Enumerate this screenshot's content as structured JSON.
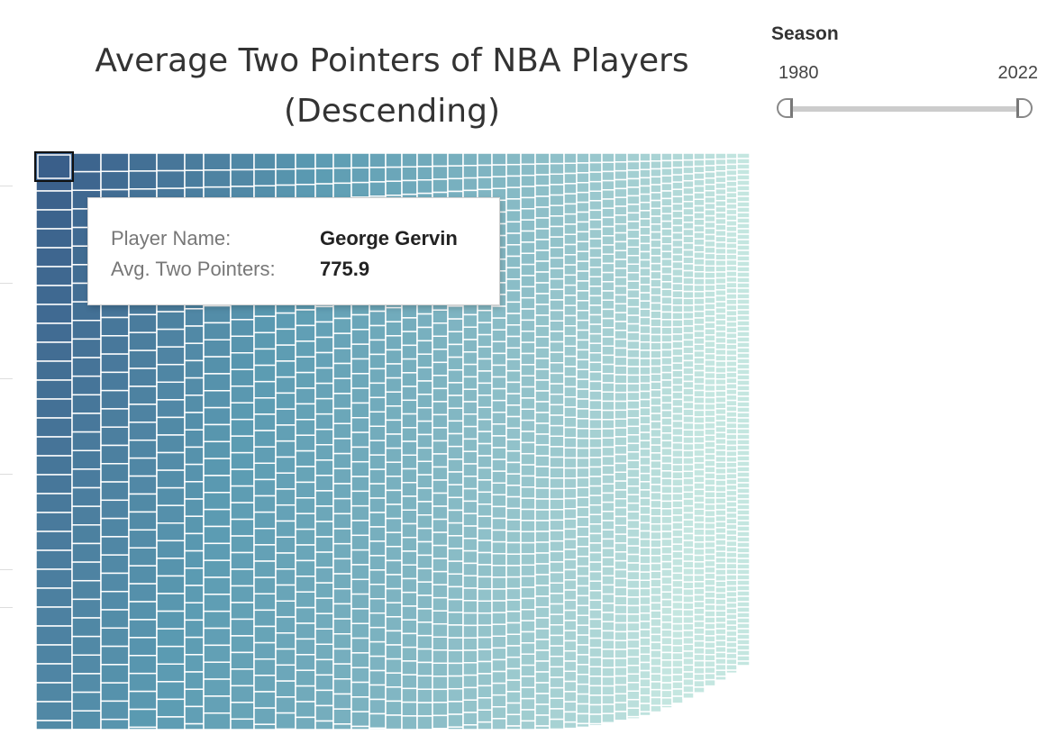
{
  "title_line1": "Average Two Pointers of NBA Players",
  "title_line2": "(Descending)",
  "filter": {
    "label": "Season",
    "min_label": "1980",
    "max_label": "2022",
    "range": [
      1980,
      2022
    ]
  },
  "tooltip": {
    "player_label": "Player Name:",
    "player_value": "George Gervin",
    "avg_label": "Avg. Two Pointers:",
    "avg_value": "775.9"
  },
  "chart_data": {
    "type": "treemap",
    "title": "Average Two Pointers of NBA Players (Descending)",
    "measure": "Avg. Two Pointers",
    "ordering": "descending",
    "highlighted": {
      "name": "George Gervin",
      "value": 775.9
    },
    "colors": {
      "high": "#3a5f8a",
      "mid": "#5b9bb2",
      "low": "#c4e6e0"
    }
  }
}
